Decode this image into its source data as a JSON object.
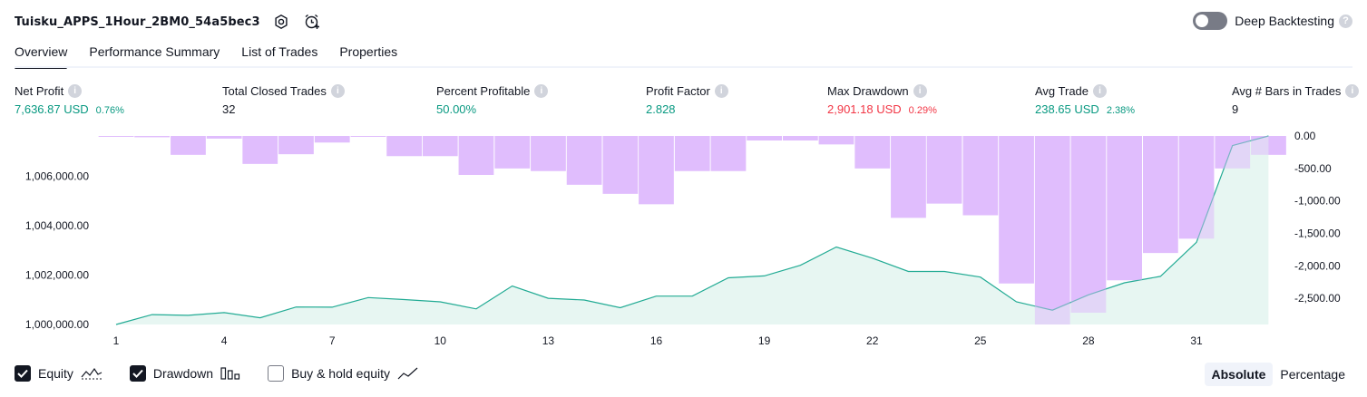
{
  "strategy": {
    "name": "Tuisku_APPS_1Hour_2BM0_54a5bec3"
  },
  "header_icons": [
    "settings-icon",
    "alarm-icon"
  ],
  "deep_backtesting": {
    "label": "Deep Backtesting",
    "enabled": false
  },
  "tabs": [
    {
      "label": "Overview",
      "active": true
    },
    {
      "label": "Performance Summary",
      "active": false
    },
    {
      "label": "List of Trades",
      "active": false
    },
    {
      "label": "Properties",
      "active": false
    }
  ],
  "metrics": {
    "net_profit": {
      "label": "Net Profit",
      "value": "7,636.87 USD",
      "pct": "0.76%"
    },
    "total_closed_trades": {
      "label": "Total Closed Trades",
      "value": "32"
    },
    "percent_profitable": {
      "label": "Percent Profitable",
      "value": "50.00%"
    },
    "profit_factor": {
      "label": "Profit Factor",
      "value": "2.828"
    },
    "max_drawdown": {
      "label": "Max Drawdown",
      "value": "2,901.18 USD",
      "pct": "0.29%"
    },
    "avg_trade": {
      "label": "Avg Trade",
      "value": "238.65 USD",
      "pct": "2.38%"
    },
    "avg_bars": {
      "label": "Avg # Bars in Trades",
      "value": "9"
    }
  },
  "colors": {
    "positive": "#089981",
    "negative": "#f23645",
    "equity_line": "#22ab94",
    "equity_fill": "#e3f4f0",
    "drawdown_bar": "#e1bdfd"
  },
  "legend": {
    "equity": {
      "label": "Equity",
      "checked": true
    },
    "drawdown": {
      "label": "Drawdown",
      "checked": true
    },
    "buy_hold": {
      "label": "Buy & hold equity",
      "checked": false
    }
  },
  "modes": [
    {
      "label": "Absolute",
      "active": true
    },
    {
      "label": "Percentage",
      "active": false
    }
  ],
  "chart_data": {
    "type": "area",
    "x_tick_labels": [
      "1",
      "4",
      "7",
      "10",
      "13",
      "16",
      "19",
      "22",
      "25",
      "28",
      "31"
    ],
    "x_ticks": [
      1,
      4,
      7,
      10,
      13,
      16,
      19,
      22,
      25,
      28,
      31
    ],
    "left_axis": {
      "ticks": [
        1000000,
        1002000,
        1004000,
        1006000
      ],
      "tick_labels": [
        "1,000,000.00",
        "1,002,000.00",
        "1,004,000.00",
        "1,006,000.00"
      ],
      "range": [
        999500,
        1007500
      ]
    },
    "right_axis": {
      "ticks": [
        0,
        -500,
        -1000,
        -1500,
        -2000,
        -2500
      ],
      "tick_labels": [
        "0.00",
        "-500.00",
        "-1,000.00",
        "-1,500.00",
        "-2,000.00",
        "-2,500.00"
      ],
      "range": [
        -2901.18,
        0
      ]
    },
    "equity": {
      "x": [
        1,
        2,
        3,
        4,
        5,
        6,
        7,
        8,
        9,
        10,
        11,
        12,
        13,
        14,
        15,
        16,
        17,
        18,
        19,
        20,
        21,
        22,
        23,
        24,
        25,
        26,
        27,
        28,
        29,
        30,
        31,
        32,
        33
      ],
      "y": [
        1000000,
        1000400,
        1000370,
        1000480,
        1000270,
        1000710,
        1000700,
        1001090,
        1001010,
        1000920,
        1000630,
        1001560,
        1001060,
        1000990,
        1000680,
        1001150,
        1001150,
        1001890,
        1001970,
        1002400,
        1003140,
        1002690,
        1002150,
        1002150,
        1001920,
        1000920,
        1000580,
        1001200,
        1001690,
        1001950,
        1003330,
        1007250,
        1007640
      ]
    },
    "drawdown": {
      "x": [
        1,
        2,
        3,
        4,
        5,
        6,
        7,
        8,
        9,
        10,
        11,
        12,
        13,
        14,
        15,
        16,
        17,
        18,
        19,
        20,
        21,
        22,
        23,
        24,
        25,
        26,
        27,
        28,
        29,
        30,
        31,
        32,
        33
      ],
      "y": [
        -10,
        -20,
        -290,
        -40,
        -430,
        -280,
        -100,
        -10,
        -310,
        -310,
        -600,
        -500,
        -540,
        -750,
        -890,
        -1050,
        -540,
        -540,
        -70,
        -70,
        -130,
        -500,
        -1260,
        -1040,
        -1220,
        -2270,
        -2901.18,
        -2720,
        -2220,
        -1800,
        -1580,
        -500,
        -290
      ]
    },
    "grid": false,
    "legend_position": "bottom-left"
  }
}
